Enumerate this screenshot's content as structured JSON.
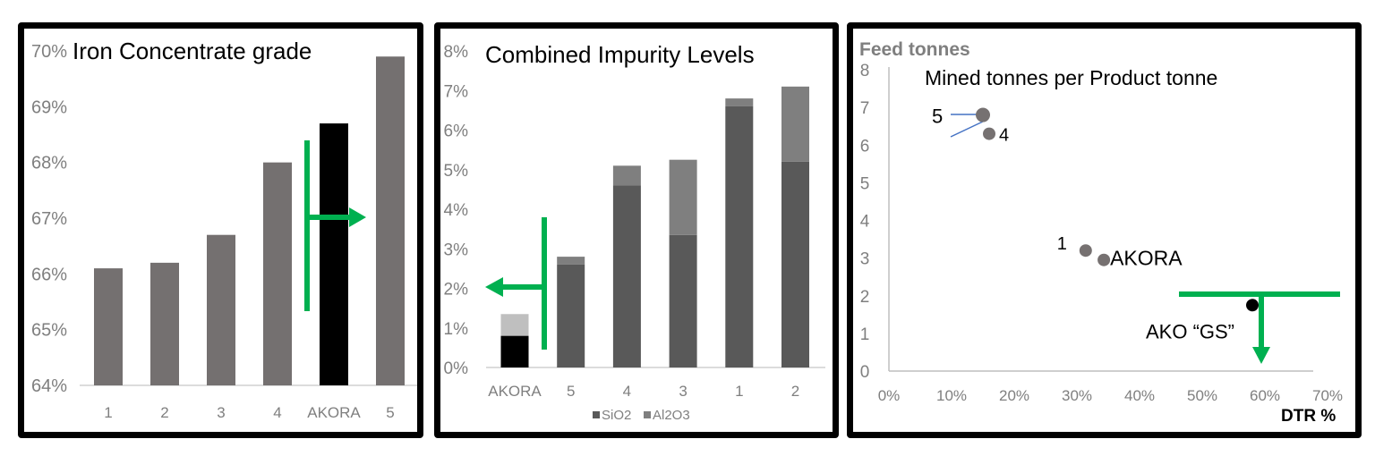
{
  "colors": {
    "bar_gray": "#747070",
    "highlight": "#000000",
    "sio2": "#595959",
    "al2o3": "#7f7f7f",
    "akora_al2o3": "#bfbfbf",
    "point_gray": "#767171",
    "green": "#00b050",
    "leader_blue": "#4472c4",
    "axis": "#d0d0d0"
  },
  "chart_data": [
    {
      "type": "bar",
      "title": "Iron Concentrate grade",
      "xlabel": "",
      "ylabel": "",
      "ylim": [
        0.64,
        0.7
      ],
      "yticks": [
        "64%",
        "65%",
        "66%",
        "67%",
        "68%",
        "69%",
        "70%"
      ],
      "categories": [
        "1",
        "2",
        "3",
        "4",
        "AKORA",
        "5"
      ],
      "values": [
        0.661,
        0.662,
        0.667,
        0.68,
        0.687,
        0.699
      ],
      "highlight": "AKORA",
      "annotation": "green arrow pointing right (higher grade better)"
    },
    {
      "type": "bar",
      "stacked": true,
      "title": "Combined Impurity Levels",
      "xlabel": "",
      "ylabel": "",
      "ylim": [
        0,
        0.08
      ],
      "yticks": [
        "0%",
        "1%",
        "2%",
        "3%",
        "4%",
        "5%",
        "6%",
        "7%",
        "8%"
      ],
      "categories": [
        "AKORA",
        "5",
        "4",
        "3",
        "1",
        "2"
      ],
      "series": [
        {
          "name": "SiO2",
          "values": [
            0.008,
            0.026,
            0.046,
            0.0335,
            0.066,
            0.052
          ]
        },
        {
          "name": "Al2O3",
          "values": [
            0.0055,
            0.002,
            0.005,
            0.019,
            0.002,
            0.019
          ]
        }
      ],
      "legend": [
        "SiO2",
        "Al2O3"
      ],
      "legend_position": "bottom",
      "highlight": "AKORA",
      "annotation": "green arrow pointing left (lower impurity better)"
    },
    {
      "type": "scatter",
      "title": "Mined tonnes per Product tonne",
      "ylabel": "Feed tonnes",
      "xlabel": "DTR %",
      "xlim": [
        0,
        0.7
      ],
      "ylim": [
        0,
        8
      ],
      "xticks": [
        "0%",
        "10%",
        "20%",
        "30%",
        "40%",
        "50%",
        "60%",
        "70%"
      ],
      "yticks": [
        "0",
        "1",
        "2",
        "3",
        "4",
        "5",
        "6",
        "7",
        "8"
      ],
      "points": [
        {
          "label": "5",
          "x": 0.15,
          "y": 6.8
        },
        {
          "label": "4",
          "x": 0.16,
          "y": 6.3
        },
        {
          "label": "1",
          "x": 0.314,
          "y": 3.2
        },
        {
          "label": "AKORA",
          "x": 0.343,
          "y": 2.95
        },
        {
          "label": "AKO “GS”",
          "x": 0.58,
          "y": 1.75,
          "highlight": true
        }
      ],
      "annotation": "green T marker pointing down (lower feed tonnes better)"
    }
  ]
}
